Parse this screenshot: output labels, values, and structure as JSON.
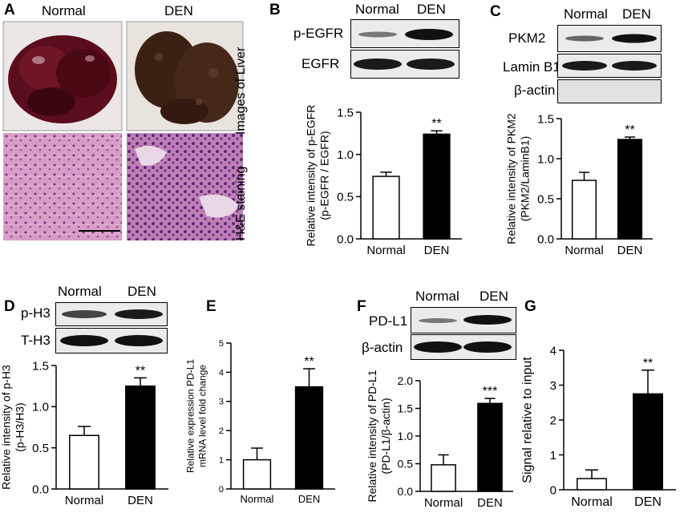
{
  "panels": {
    "A": {
      "letter": "A",
      "col_normal": "Normal",
      "col_den": "DEN",
      "row1_label": "Images of Liver",
      "row2_label": "H&E staining"
    },
    "B": {
      "letter": "B",
      "col_normal": "Normal",
      "col_den": "DEN",
      "blot_rows": [
        "p-EGFR",
        "EGFR"
      ]
    },
    "C": {
      "letter": "C",
      "col_normal": "Normal",
      "col_den": "DEN",
      "blot_rows": [
        "PKM2",
        "Lamin B1",
        "β-actin"
      ]
    },
    "D": {
      "letter": "D",
      "col_normal": "Normal",
      "col_den": "DEN",
      "blot_rows": [
        "p-H3",
        "T-H3"
      ]
    },
    "E": {
      "letter": "E"
    },
    "F": {
      "letter": "F",
      "col_normal": "Normal",
      "col_den": "DEN",
      "blot_rows": [
        "PD-L1",
        "β-actin"
      ]
    },
    "G": {
      "letter": "G"
    }
  },
  "chart_data": [
    {
      "id": "B",
      "type": "bar",
      "categories": [
        "Normal",
        "DEN"
      ],
      "values": [
        0.74,
        1.24
      ],
      "errors": [
        0.05,
        0.04
      ],
      "ylabel_lines": [
        "Relative intensity of p-EGFR",
        "(p-EGFR / EGFR)"
      ],
      "ylim": [
        0,
        1.5
      ],
      "yticks": [
        "0.0",
        "0.5",
        "1.0",
        "1.5"
      ],
      "significance": "**"
    },
    {
      "id": "C",
      "type": "bar",
      "categories": [
        "Normal",
        "DEN"
      ],
      "values": [
        0.73,
        1.24
      ],
      "errors": [
        0.1,
        0.03
      ],
      "ylabel_lines": [
        "Relative intensity of PKM2",
        "(PKM2/LaminB1)"
      ],
      "ylim": [
        0,
        1.5
      ],
      "yticks": [
        "0.0",
        "0.5",
        "1.0",
        "1.5"
      ],
      "significance": "**"
    },
    {
      "id": "D",
      "type": "bar",
      "categories": [
        "Normal",
        "DEN"
      ],
      "values": [
        0.65,
        1.25
      ],
      "errors": [
        0.11,
        0.1
      ],
      "ylabel_lines": [
        "Relative intensity of p-H3",
        "(p-H3/H3)"
      ],
      "ylim": [
        0,
        1.5
      ],
      "yticks": [
        "0.0",
        "0.5",
        "1.0",
        "1.5"
      ],
      "significance": "**"
    },
    {
      "id": "E",
      "type": "bar",
      "categories": [
        "Normal",
        "DEN"
      ],
      "values": [
        1.0,
        3.5
      ],
      "errors": [
        0.4,
        0.62
      ],
      "ylabel_lines": [
        "Relative expression PD-L1",
        "mRNA level fold change"
      ],
      "ylim": [
        0,
        5
      ],
      "yticks": [
        "0",
        "1",
        "2",
        "3",
        "4",
        "5"
      ],
      "significance": "**"
    },
    {
      "id": "F",
      "type": "bar",
      "categories": [
        "Normal",
        "DEN"
      ],
      "values": [
        0.48,
        1.59
      ],
      "errors": [
        0.18,
        0.09
      ],
      "ylabel_lines": [
        "Relative intensity of PD-L1",
        "(PD-L1/β-actin)"
      ],
      "ylim": [
        0,
        2.0
      ],
      "yticks": [
        "0.0",
        "0.5",
        "1.0",
        "1.5",
        "2.0"
      ],
      "significance": "***"
    },
    {
      "id": "G",
      "type": "bar",
      "categories": [
        "Normal",
        "DEN"
      ],
      "values": [
        0.32,
        2.75
      ],
      "errors": [
        0.25,
        0.68
      ],
      "ylabel_lines": [
        "Signal relative to input"
      ],
      "ylim": [
        0,
        4
      ],
      "yticks": [
        "0",
        "1",
        "2",
        "3",
        "4"
      ],
      "significance": "**"
    }
  ]
}
